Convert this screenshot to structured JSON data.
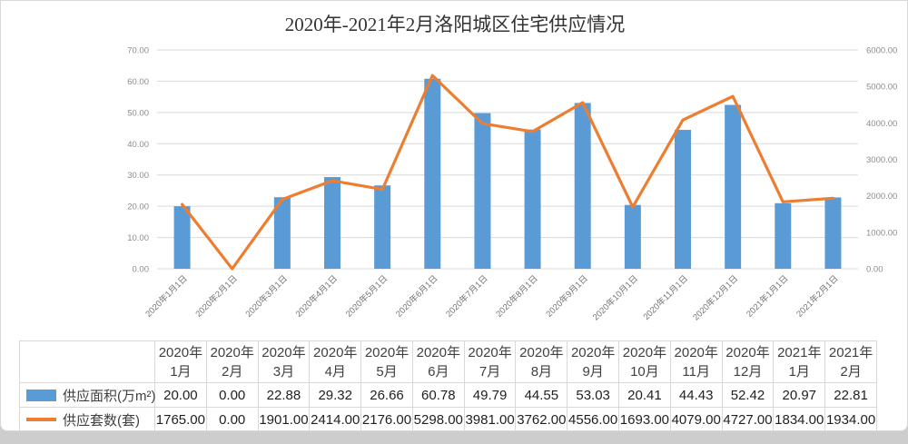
{
  "chart_data": {
    "type": "bar+line",
    "title": "2020年-2021年2月洛阳城区住宅供应情况",
    "categories": [
      "2020年1月1日",
      "2020年2月1日",
      "2020年3月1日",
      "2020年4月1日",
      "2020年5月1日",
      "2020年6月1日",
      "2020年7月1日",
      "2020年8月1日",
      "2020年9月1日",
      "2020年10月1日",
      "2020年11月1日",
      "2020年12月1日",
      "2021年1月1日",
      "2021年2月1日"
    ],
    "series": [
      {
        "name": "供应面积(万m²)",
        "type": "bar",
        "axis": "left",
        "color": "#5B9BD5",
        "values": [
          20.0,
          0.0,
          22.88,
          29.32,
          26.66,
          60.78,
          49.79,
          44.55,
          53.03,
          20.41,
          44.43,
          52.42,
          20.97,
          22.81
        ]
      },
      {
        "name": "供应套数(套)",
        "type": "line",
        "axis": "right",
        "color": "#ED7D31",
        "values": [
          1765.0,
          0.0,
          1901.0,
          2414.0,
          2176.0,
          5298.0,
          3981.0,
          3762.0,
          4556.0,
          1693.0,
          4079.0,
          4727.0,
          1834.0,
          1934.0
        ]
      }
    ],
    "left_axis": {
      "min": 0,
      "max": 70,
      "step": 10,
      "tick_labels": [
        "0.00",
        "10.00",
        "20.00",
        "30.00",
        "40.00",
        "50.00",
        "60.00",
        "70.00"
      ]
    },
    "right_axis": {
      "min": 0,
      "max": 6000,
      "step": 1000,
      "tick_labels": [
        "0.00",
        "1000.00",
        "2000.00",
        "3000.00",
        "4000.00",
        "5000.00",
        "6000.00"
      ]
    },
    "grid": true,
    "legend_position": "data-table-left"
  },
  "table": {
    "column_headers": [
      [
        "2020年",
        "1月"
      ],
      [
        "2020年",
        "2月"
      ],
      [
        "2020年",
        "3月"
      ],
      [
        "2020年",
        "4月"
      ],
      [
        "2020年",
        "5月"
      ],
      [
        "2020年",
        "6月"
      ],
      [
        "2020年",
        "7月"
      ],
      [
        "2020年",
        "8月"
      ],
      [
        "2020年",
        "9月"
      ],
      [
        "2020年",
        "10月"
      ],
      [
        "2020年",
        "11月"
      ],
      [
        "2020年",
        "12月"
      ],
      [
        "2021年",
        "1月"
      ],
      [
        "2021年",
        "2月"
      ]
    ],
    "rows": [
      {
        "label": "供应面积(万m²)",
        "marker": "bar-swatch",
        "marker_color": "#5B9BD5",
        "values": [
          "20.00",
          "0.00",
          "22.88",
          "29.32",
          "26.66",
          "60.78",
          "49.79",
          "44.55",
          "53.03",
          "20.41",
          "44.43",
          "52.42",
          "20.97",
          "22.81"
        ]
      },
      {
        "label": "供应套数(套)",
        "marker": "line-swatch",
        "marker_color": "#ED7D31",
        "values": [
          "1765.00",
          "0.00",
          "1901.00",
          "2414.00",
          "2176.00",
          "5298.00",
          "3981.00",
          "3762.00",
          "4556.00",
          "1693.00",
          "4079.00",
          "4727.00",
          "1834.00",
          "1934.00"
        ]
      }
    ]
  },
  "colors": {
    "bar": "#5B9BD5",
    "line": "#ED7D31",
    "grid": "#D9D9D9",
    "axis_text": "#8C8C8C",
    "title_text": "#333333",
    "table_border": "#D9D9D9",
    "background_strip": "#CDCDCD"
  }
}
